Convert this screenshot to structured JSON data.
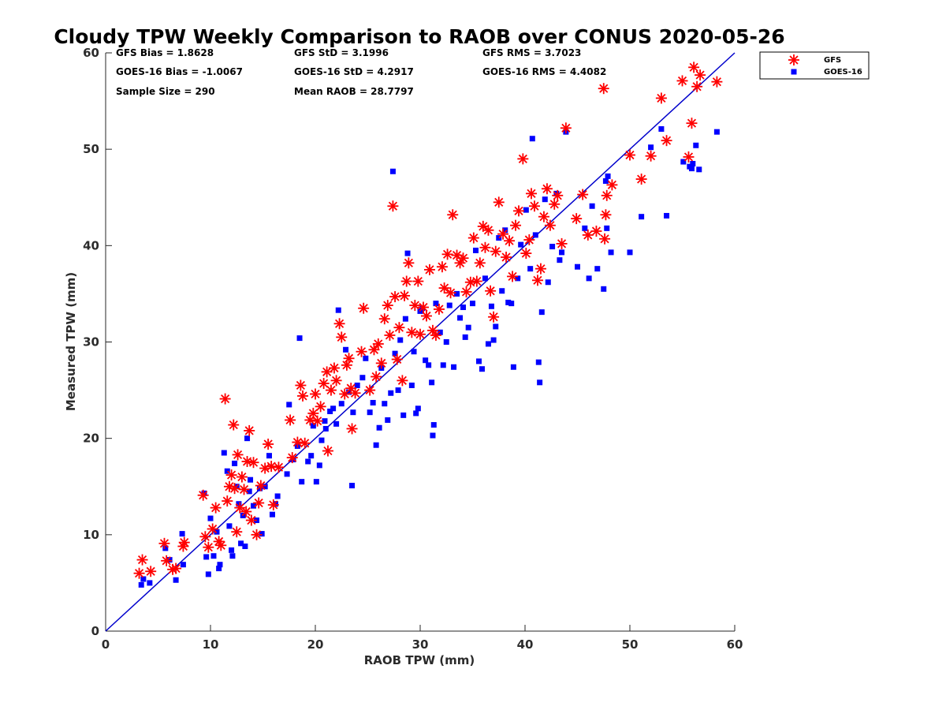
{
  "chart_data": {
    "type": "scatter",
    "title": "Cloudy TPW Weekly Comparison to RAOB over CONUS 2020-05-26",
    "xlabel": "RAOB TPW (mm)",
    "ylabel": "Measured TPW (mm)",
    "xlim": [
      0,
      60
    ],
    "ylim": [
      0,
      60
    ],
    "xticks": [
      "0",
      "10",
      "20",
      "30",
      "40",
      "50",
      "60"
    ],
    "yticks": [
      "0",
      "10",
      "20",
      "30",
      "40",
      "50",
      "60"
    ],
    "grid": false,
    "legend_position": "top-right outside plot",
    "reference_line": {
      "x": [
        0,
        60
      ],
      "y": [
        0,
        60
      ],
      "color": "#0000cc"
    },
    "stats": [
      "GFS Bias = 1.8628",
      "GFS StD = 3.1996",
      "GFS RMS = 3.7023",
      "GOES-16 Bias = -1.0067",
      "GOES-16 StD = 4.2917",
      "GOES-16 RMS = 4.4082",
      "Sample Size = 290",
      "Mean RAOB = 28.7797"
    ],
    "series": [
      {
        "name": "GFS",
        "marker": "asterisk",
        "color": "#ff0000",
        "points": [
          [
            3.2,
            6.0
          ],
          [
            3.5,
            7.4
          ],
          [
            4.3,
            6.2
          ],
          [
            5.6,
            9.1
          ],
          [
            5.8,
            7.3
          ],
          [
            6.4,
            6.4
          ],
          [
            6.7,
            6.5
          ],
          [
            7.4,
            8.8
          ],
          [
            7.5,
            9.2
          ],
          [
            9.3,
            14.1
          ],
          [
            9.5,
            9.8
          ],
          [
            9.8,
            8.7
          ],
          [
            10.2,
            10.6
          ],
          [
            10.5,
            12.8
          ],
          [
            10.8,
            9.3
          ],
          [
            11.0,
            8.9
          ],
          [
            11.4,
            24.1
          ],
          [
            11.6,
            13.5
          ],
          [
            11.8,
            15.0
          ],
          [
            12.0,
            16.2
          ],
          [
            12.2,
            21.4
          ],
          [
            12.3,
            14.8
          ],
          [
            12.5,
            10.3
          ],
          [
            12.6,
            18.3
          ],
          [
            12.8,
            12.8
          ],
          [
            13.0,
            16.0
          ],
          [
            13.2,
            14.7
          ],
          [
            13.4,
            12.4
          ],
          [
            13.5,
            17.6
          ],
          [
            13.7,
            20.8
          ],
          [
            13.9,
            11.5
          ],
          [
            14.1,
            17.5
          ],
          [
            14.4,
            10.0
          ],
          [
            14.6,
            13.3
          ],
          [
            14.8,
            15.1
          ],
          [
            15.2,
            16.9
          ],
          [
            15.5,
            19.4
          ],
          [
            15.8,
            17.1
          ],
          [
            16.0,
            13.1
          ],
          [
            16.5,
            17.0
          ],
          [
            17.6,
            21.9
          ],
          [
            17.8,
            18.0
          ],
          [
            18.3,
            19.6
          ],
          [
            18.6,
            25.5
          ],
          [
            18.8,
            24.4
          ],
          [
            19.0,
            19.5
          ],
          [
            19.5,
            21.9
          ],
          [
            19.8,
            22.6
          ],
          [
            20.0,
            24.6
          ],
          [
            20.2,
            21.8
          ],
          [
            20.5,
            23.3
          ],
          [
            20.8,
            25.7
          ],
          [
            21.1,
            26.9
          ],
          [
            21.2,
            18.7
          ],
          [
            21.5,
            25.0
          ],
          [
            21.8,
            27.3
          ],
          [
            22.0,
            26.0
          ],
          [
            22.3,
            31.9
          ],
          [
            22.5,
            30.5
          ],
          [
            22.8,
            24.6
          ],
          [
            23.0,
            27.6
          ],
          [
            23.2,
            28.3
          ],
          [
            23.4,
            25.2
          ],
          [
            23.5,
            21.0
          ],
          [
            23.8,
            24.7
          ],
          [
            24.4,
            29.0
          ],
          [
            24.6,
            33.5
          ],
          [
            25.2,
            25.0
          ],
          [
            25.6,
            29.2
          ],
          [
            25.8,
            26.4
          ],
          [
            26.0,
            29.8
          ],
          [
            26.3,
            27.8
          ],
          [
            26.6,
            32.4
          ],
          [
            26.9,
            33.8
          ],
          [
            27.1,
            30.7
          ],
          [
            27.4,
            44.1
          ],
          [
            27.6,
            34.7
          ],
          [
            27.8,
            28.2
          ],
          [
            28.0,
            31.5
          ],
          [
            28.3,
            26.0
          ],
          [
            28.5,
            34.8
          ],
          [
            28.7,
            36.3
          ],
          [
            28.9,
            38.2
          ],
          [
            29.2,
            31.0
          ],
          [
            29.5,
            33.8
          ],
          [
            29.8,
            36.3
          ],
          [
            30.0,
            30.8
          ],
          [
            30.3,
            33.6
          ],
          [
            30.6,
            32.7
          ],
          [
            30.9,
            37.5
          ],
          [
            31.2,
            31.2
          ],
          [
            31.5,
            30.7
          ],
          [
            31.8,
            33.4
          ],
          [
            32.1,
            37.8
          ],
          [
            32.3,
            35.6
          ],
          [
            32.6,
            39.1
          ],
          [
            32.9,
            35.1
          ],
          [
            33.1,
            43.2
          ],
          [
            33.5,
            39.0
          ],
          [
            33.8,
            38.2
          ],
          [
            34.1,
            38.7
          ],
          [
            34.4,
            35.2
          ],
          [
            34.8,
            36.2
          ],
          [
            35.1,
            40.8
          ],
          [
            35.4,
            36.3
          ],
          [
            35.7,
            38.2
          ],
          [
            36.0,
            42.0
          ],
          [
            36.2,
            39.8
          ],
          [
            36.5,
            41.6
          ],
          [
            36.7,
            35.3
          ],
          [
            37.0,
            32.6
          ],
          [
            37.2,
            39.4
          ],
          [
            37.5,
            44.5
          ],
          [
            37.9,
            41.2
          ],
          [
            38.2,
            38.8
          ],
          [
            38.5,
            40.5
          ],
          [
            38.8,
            36.8
          ],
          [
            39.1,
            42.1
          ],
          [
            39.4,
            43.6
          ],
          [
            39.8,
            49.0
          ],
          [
            40.1,
            39.2
          ],
          [
            40.4,
            40.6
          ],
          [
            40.6,
            45.4
          ],
          [
            40.9,
            44.1
          ],
          [
            41.2,
            36.4
          ],
          [
            41.5,
            37.6
          ],
          [
            41.8,
            43.0
          ],
          [
            42.1,
            45.9
          ],
          [
            42.4,
            42.1
          ],
          [
            42.8,
            44.3
          ],
          [
            43.1,
            45.2
          ],
          [
            43.5,
            40.2
          ],
          [
            43.9,
            52.2
          ],
          [
            44.9,
            42.8
          ],
          [
            45.5,
            45.3
          ],
          [
            46.0,
            41.1
          ],
          [
            46.8,
            41.5
          ],
          [
            47.5,
            56.3
          ],
          [
            47.6,
            40.7
          ],
          [
            47.7,
            43.2
          ],
          [
            47.8,
            45.2
          ],
          [
            48.3,
            46.3
          ],
          [
            50.0,
            49.4
          ],
          [
            51.1,
            46.9
          ],
          [
            52.0,
            49.3
          ],
          [
            53.0,
            55.3
          ],
          [
            53.5,
            50.9
          ],
          [
            55.0,
            57.1
          ],
          [
            55.6,
            49.2
          ],
          [
            55.9,
            52.7
          ],
          [
            56.1,
            58.5
          ],
          [
            56.4,
            56.5
          ],
          [
            56.7,
            57.7
          ],
          [
            58.3,
            57.0
          ]
        ]
      },
      {
        "name": "GOES-16",
        "marker": "square",
        "color": "#0000ff",
        "points": [
          [
            3.4,
            4.8
          ],
          [
            3.6,
            5.4
          ],
          [
            4.2,
            5.0
          ],
          [
            5.7,
            8.6
          ],
          [
            6.1,
            7.4
          ],
          [
            6.7,
            5.3
          ],
          [
            7.3,
            10.1
          ],
          [
            7.4,
            6.9
          ],
          [
            9.4,
            14.3
          ],
          [
            9.6,
            7.7
          ],
          [
            9.8,
            5.9
          ],
          [
            10.0,
            11.7
          ],
          [
            10.3,
            7.8
          ],
          [
            10.6,
            10.3
          ],
          [
            10.8,
            6.5
          ],
          [
            10.9,
            6.9
          ],
          [
            11.3,
            18.5
          ],
          [
            11.6,
            16.6
          ],
          [
            11.8,
            10.9
          ],
          [
            12.0,
            8.4
          ],
          [
            12.1,
            7.8
          ],
          [
            12.3,
            17.4
          ],
          [
            12.5,
            15.0
          ],
          [
            12.7,
            13.2
          ],
          [
            12.9,
            9.1
          ],
          [
            13.1,
            12.0
          ],
          [
            13.3,
            8.8
          ],
          [
            13.5,
            20.0
          ],
          [
            13.7,
            14.5
          ],
          [
            13.8,
            15.7
          ],
          [
            14.1,
            13.0
          ],
          [
            14.4,
            11.5
          ],
          [
            14.7,
            14.8
          ],
          [
            14.9,
            10.1
          ],
          [
            15.2,
            15.0
          ],
          [
            15.6,
            18.2
          ],
          [
            15.9,
            12.1
          ],
          [
            16.2,
            13.2
          ],
          [
            16.4,
            14.0
          ],
          [
            17.3,
            16.3
          ],
          [
            17.5,
            23.5
          ],
          [
            17.9,
            17.8
          ],
          [
            18.3,
            19.2
          ],
          [
            18.5,
            30.4
          ],
          [
            18.7,
            15.5
          ],
          [
            19.3,
            17.6
          ],
          [
            19.6,
            18.2
          ],
          [
            19.8,
            21.3
          ],
          [
            20.1,
            15.5
          ],
          [
            20.4,
            17.2
          ],
          [
            20.6,
            19.8
          ],
          [
            20.9,
            21.8
          ],
          [
            21.0,
            21.0
          ],
          [
            21.4,
            22.8
          ],
          [
            21.7,
            23.1
          ],
          [
            22.0,
            21.5
          ],
          [
            22.2,
            33.3
          ],
          [
            22.5,
            23.6
          ],
          [
            22.9,
            29.2
          ],
          [
            23.2,
            24.8
          ],
          [
            23.5,
            15.1
          ],
          [
            23.6,
            22.7
          ],
          [
            24.0,
            25.5
          ],
          [
            24.5,
            26.3
          ],
          [
            24.8,
            28.3
          ],
          [
            25.2,
            22.7
          ],
          [
            25.5,
            23.7
          ],
          [
            25.8,
            19.3
          ],
          [
            26.1,
            21.1
          ],
          [
            26.3,
            27.3
          ],
          [
            26.6,
            23.6
          ],
          [
            26.9,
            21.9
          ],
          [
            27.2,
            24.7
          ],
          [
            27.4,
            47.7
          ],
          [
            27.6,
            28.8
          ],
          [
            27.9,
            25.0
          ],
          [
            28.1,
            30.2
          ],
          [
            28.4,
            22.4
          ],
          [
            28.6,
            32.4
          ],
          [
            28.8,
            39.2
          ],
          [
            29.2,
            25.5
          ],
          [
            29.4,
            29.0
          ],
          [
            29.6,
            22.6
          ],
          [
            29.8,
            23.1
          ],
          [
            30.0,
            33.2
          ],
          [
            30.2,
            33.5
          ],
          [
            30.5,
            28.1
          ],
          [
            30.8,
            27.6
          ],
          [
            31.1,
            25.8
          ],
          [
            31.2,
            20.3
          ],
          [
            31.3,
            21.4
          ],
          [
            31.5,
            34.0
          ],
          [
            31.9,
            31.0
          ],
          [
            32.2,
            27.6
          ],
          [
            32.5,
            30.0
          ],
          [
            32.8,
            33.8
          ],
          [
            33.2,
            27.4
          ],
          [
            33.5,
            35.0
          ],
          [
            33.8,
            32.5
          ],
          [
            34.1,
            33.6
          ],
          [
            34.3,
            30.5
          ],
          [
            34.6,
            31.5
          ],
          [
            35.0,
            34.0
          ],
          [
            35.3,
            39.5
          ],
          [
            35.6,
            28.0
          ],
          [
            35.9,
            27.2
          ],
          [
            36.2,
            36.6
          ],
          [
            36.5,
            29.8
          ],
          [
            36.8,
            33.7
          ],
          [
            37.0,
            30.2
          ],
          [
            37.2,
            31.6
          ],
          [
            37.5,
            40.8
          ],
          [
            37.8,
            35.3
          ],
          [
            38.1,
            41.6
          ],
          [
            38.4,
            34.1
          ],
          [
            38.7,
            34.0
          ],
          [
            38.9,
            27.4
          ],
          [
            39.3,
            36.6
          ],
          [
            39.6,
            40.1
          ],
          [
            40.1,
            43.7
          ],
          [
            40.5,
            37.6
          ],
          [
            40.7,
            51.1
          ],
          [
            41.0,
            41.1
          ],
          [
            41.3,
            27.9
          ],
          [
            41.4,
            25.8
          ],
          [
            41.6,
            33.1
          ],
          [
            41.9,
            44.8
          ],
          [
            42.2,
            36.2
          ],
          [
            42.6,
            39.9
          ],
          [
            43.0,
            45.4
          ],
          [
            43.3,
            38.5
          ],
          [
            43.5,
            39.3
          ],
          [
            43.9,
            51.8
          ],
          [
            45.0,
            37.8
          ],
          [
            45.7,
            41.8
          ],
          [
            46.1,
            36.6
          ],
          [
            46.4,
            44.1
          ],
          [
            46.9,
            37.6
          ],
          [
            47.5,
            35.5
          ],
          [
            47.7,
            46.7
          ],
          [
            47.8,
            41.8
          ],
          [
            47.9,
            47.2
          ],
          [
            48.2,
            39.3
          ],
          [
            50.0,
            39.3
          ],
          [
            51.1,
            43.0
          ],
          [
            52.0,
            50.2
          ],
          [
            53.0,
            52.1
          ],
          [
            53.5,
            43.1
          ],
          [
            55.1,
            48.7
          ],
          [
            55.7,
            48.2
          ],
          [
            55.9,
            48.0
          ],
          [
            56.0,
            48.5
          ],
          [
            56.3,
            50.4
          ],
          [
            56.6,
            47.9
          ],
          [
            58.3,
            51.8
          ]
        ]
      }
    ]
  }
}
